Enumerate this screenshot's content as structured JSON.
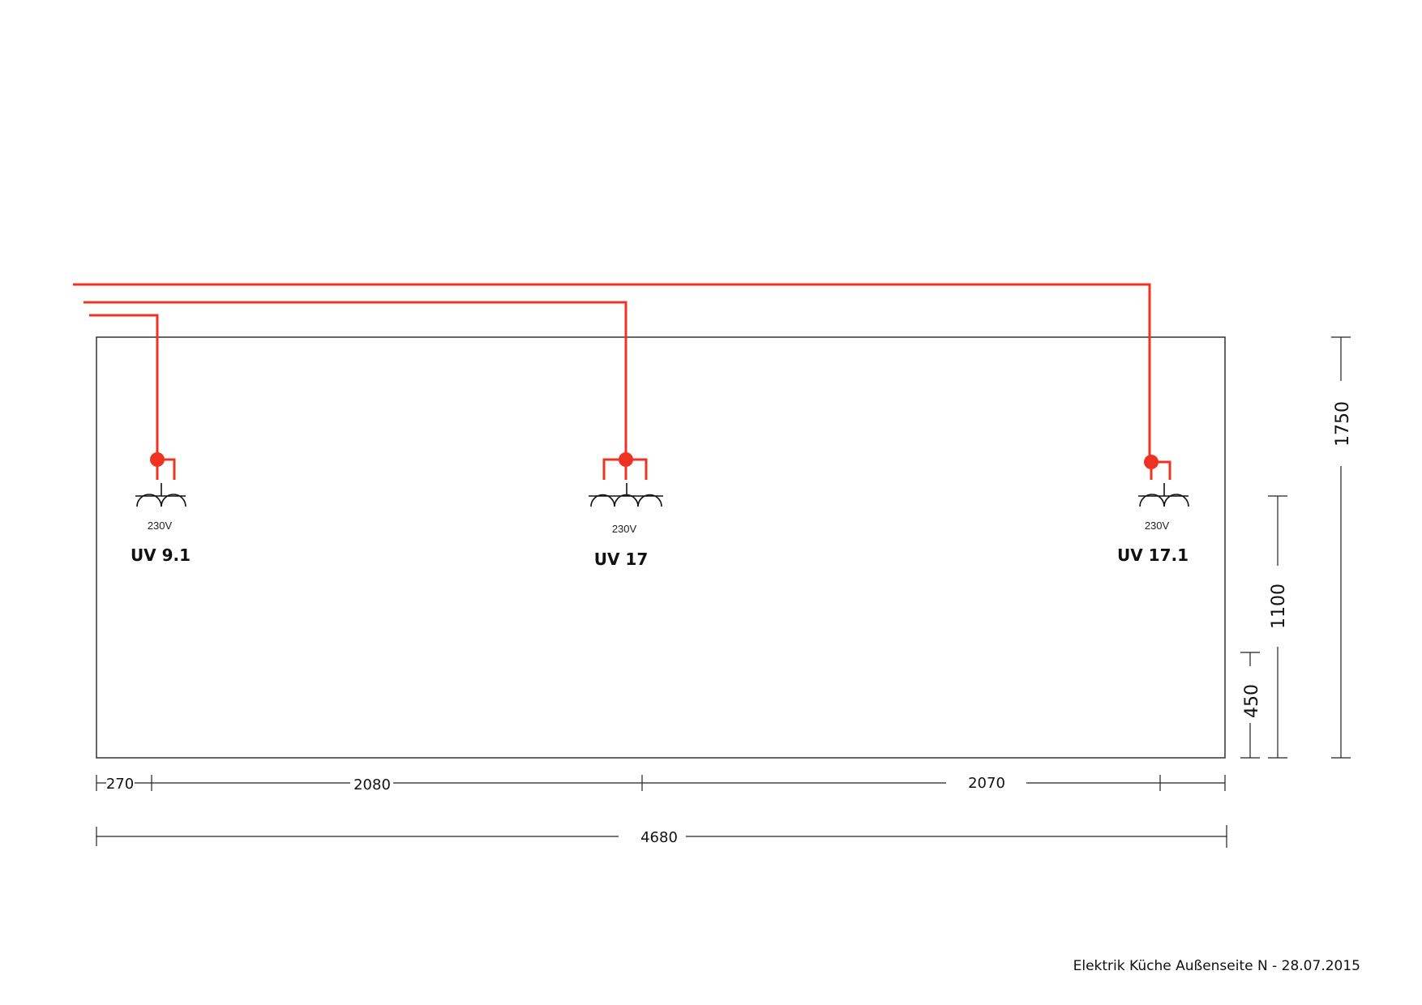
{
  "outlets": [
    {
      "name": "UV 9.1",
      "voltage": "230V",
      "sockets": 2
    },
    {
      "name": "UV 17",
      "voltage": "230V",
      "sockets": 3
    },
    {
      "name": "UV 17.1",
      "voltage": "230V",
      "sockets": 2
    }
  ],
  "dimensions": {
    "horizontal": [
      "270",
      "2080",
      "2070"
    ],
    "total_width": "4680",
    "vertical": [
      "1750",
      "1100",
      "450"
    ]
  },
  "colors": {
    "wire": "#ee3322",
    "outline": "#333333"
  },
  "title_block": {
    "text": "Elektrik Küche Außenseite N - 28.07.2015"
  }
}
